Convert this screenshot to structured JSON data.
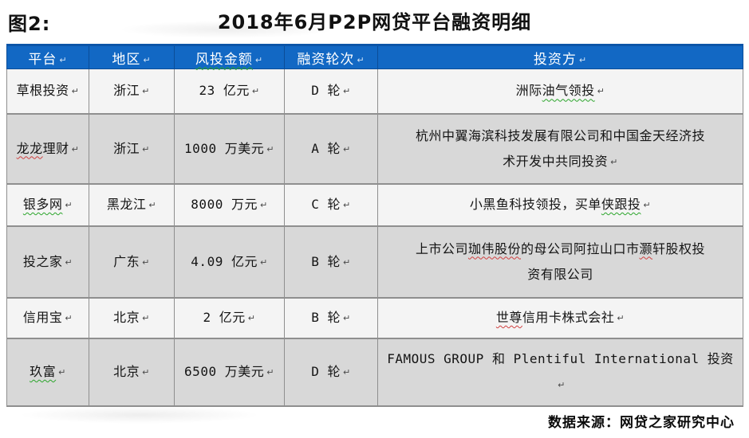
{
  "figure_label": "图2:",
  "title": "2018年6月P2P网贷平台融资明细",
  "source": "数据来源：网贷之家研究中心",
  "marks": {
    "paragraph": "↵"
  },
  "colors": {
    "header_bg": "#1268c4",
    "header_border": "#0b4d98",
    "header_text": "#ffffff",
    "row_light": "#f4f4f4",
    "row_dark": "#d8d8d8",
    "grid": "#8f8f8f",
    "wavy_green": "#2aa52a",
    "wavy_red": "#d04040"
  },
  "table": {
    "headers": [
      {
        "segments": [
          {
            "t": "平台"
          }
        ]
      },
      {
        "segments": [
          {
            "t": "地区"
          }
        ]
      },
      {
        "segments": [
          {
            "t": "风投金额",
            "u": "green"
          }
        ]
      },
      {
        "segments": [
          {
            "t": "融资轮次"
          }
        ]
      },
      {
        "segments": [
          {
            "t": "投资方"
          }
        ]
      }
    ],
    "rows": [
      {
        "platform": {
          "segments": [
            {
              "t": "草根投资"
            }
          ]
        },
        "region": {
          "segments": [
            {
              "t": "浙江"
            }
          ]
        },
        "amount": {
          "segments": [
            {
              "t": "23 亿元"
            }
          ]
        },
        "round": {
          "segments": [
            {
              "t": "D 轮"
            }
          ]
        },
        "investor": {
          "segments": [
            {
              "t": "洲际"
            },
            {
              "t": "油气领投",
              "u": "green"
            }
          ]
        }
      },
      {
        "platform": {
          "segments": [
            {
              "t": "龙龙",
              "u": "red"
            },
            {
              "t": "理财"
            }
          ]
        },
        "region": {
          "segments": [
            {
              "t": "浙江"
            }
          ]
        },
        "amount": {
          "segments": [
            {
              "t": "1000 万美元"
            }
          ]
        },
        "round": {
          "segments": [
            {
              "t": "A 轮"
            }
          ]
        },
        "investor": {
          "segments": [
            {
              "t": "杭州中翼海滨科技发展有限公司和中国金天经济技\n术开发中共同投资"
            }
          ]
        }
      },
      {
        "platform": {
          "segments": [
            {
              "t": "银多网",
              "u": "green"
            }
          ]
        },
        "region": {
          "segments": [
            {
              "t": "黑龙江"
            }
          ]
        },
        "amount": {
          "segments": [
            {
              "t": "8000 万元"
            }
          ]
        },
        "round": {
          "segments": [
            {
              "t": "C 轮"
            }
          ]
        },
        "investor": {
          "segments": [
            {
              "t": "小黑鱼科技领投，买单"
            },
            {
              "t": "侠跟投",
              "u": "green"
            }
          ]
        }
      },
      {
        "platform": {
          "segments": [
            {
              "t": "投之家"
            }
          ]
        },
        "region": {
          "segments": [
            {
              "t": "广东"
            }
          ]
        },
        "amount": {
          "segments": [
            {
              "t": "4.09 亿元"
            }
          ]
        },
        "round": {
          "segments": [
            {
              "t": "B 轮"
            }
          ]
        },
        "investor": {
          "segments": [
            {
              "t": "上市公司"
            },
            {
              "t": "珈伟股份",
              "u": "red"
            },
            {
              "t": "的母公司阿拉山口市"
            },
            {
              "t": "灏",
              "u": "red"
            },
            {
              "t": "轩股权投\n资有限公司"
            }
          ],
          "mark": false
        }
      },
      {
        "platform": {
          "segments": [
            {
              "t": "信用宝"
            }
          ]
        },
        "region": {
          "segments": [
            {
              "t": "北京"
            }
          ]
        },
        "amount": {
          "segments": [
            {
              "t": "2 亿元"
            }
          ]
        },
        "round": {
          "segments": [
            {
              "t": "B 轮"
            }
          ]
        },
        "investor": {
          "segments": [
            {
              "t": "世尊",
              "u": "red"
            },
            {
              "t": "信用卡株式会社"
            }
          ]
        }
      },
      {
        "platform": {
          "segments": [
            {
              "t": "玖富",
              "u": "green"
            }
          ]
        },
        "region": {
          "segments": [
            {
              "t": "北京"
            }
          ]
        },
        "amount": {
          "segments": [
            {
              "t": "6500 万美元"
            }
          ]
        },
        "round": {
          "segments": [
            {
              "t": "D 轮"
            }
          ]
        },
        "investor": {
          "segments": [
            {
              "t": "FAMOUS GROUP 和 Plentiful International 投资"
            }
          ]
        }
      }
    ]
  },
  "chart_data": {
    "type": "table",
    "title": "2018年6月P2P网贷平台融资明细",
    "columns": [
      "平台",
      "地区",
      "风投金额",
      "融资轮次",
      "投资方"
    ],
    "rows": [
      [
        "草根投资",
        "浙江",
        "23 亿元",
        "D 轮",
        "洲际油气领投"
      ],
      [
        "龙龙理财",
        "浙江",
        "1000 万美元",
        "A 轮",
        "杭州中翼海滨科技发展有限公司和中国金天经济技术开发中共同投资"
      ],
      [
        "银多网",
        "黑龙江",
        "8000 万元",
        "C 轮",
        "小黑鱼科技领投，买单侠跟投"
      ],
      [
        "投之家",
        "广东",
        "4.09 亿元",
        "B 轮",
        "上市公司珈伟股份的母公司阿拉山口市灏轩股权投资有限公司"
      ],
      [
        "信用宝",
        "北京",
        "2 亿元",
        "B 轮",
        "世尊信用卡株式会社"
      ],
      [
        "玖富",
        "北京",
        "6500 万美元",
        "D 轮",
        "FAMOUS GROUP 和 Plentiful International 投资"
      ]
    ]
  }
}
